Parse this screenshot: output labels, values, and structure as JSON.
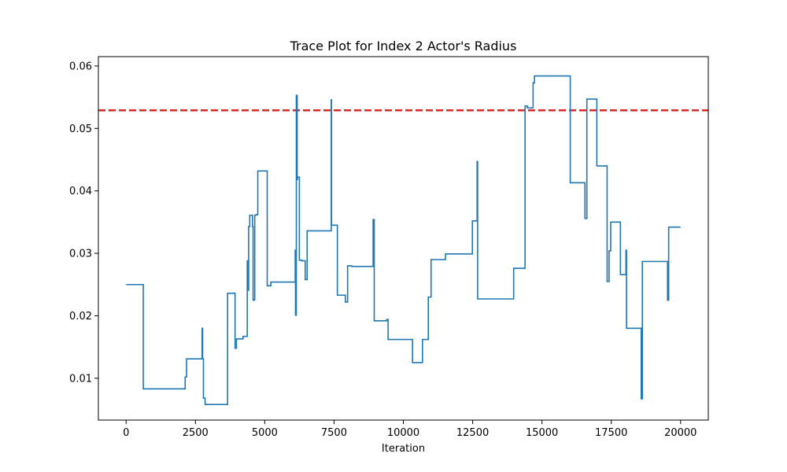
{
  "chart_data": {
    "type": "line",
    "title": "Trace Plot for Index 2 Actor's Radius",
    "xlabel": "Iteration",
    "ylabel": "",
    "xlim": [
      -1000,
      21000
    ],
    "ylim": [
      0.0033,
      0.0615
    ],
    "grid": false,
    "xticks": [
      0,
      2500,
      5000,
      7500,
      10000,
      12500,
      15000,
      17500,
      20000
    ],
    "xtick_labels": [
      "0",
      "2500",
      "5000",
      "7500",
      "10000",
      "12500",
      "15000",
      "17500",
      "20000"
    ],
    "yticks": [
      0.01,
      0.02,
      0.03,
      0.04,
      0.05,
      0.06
    ],
    "ytick_labels": [
      "0.01",
      "0.02",
      "0.03",
      "0.04",
      "0.05",
      "0.06"
    ],
    "reference_line": {
      "y": 0.0529,
      "color": "#d62728",
      "style": "dashed"
    },
    "series": [
      {
        "color": "#1f77b4",
        "step": true,
        "x": [
          0,
          620,
          2130,
          2180,
          2740,
          2760,
          2790,
          2850,
          3660,
          3930,
          3980,
          4220,
          4370,
          4380,
          4420,
          4460,
          4560,
          4580,
          4620,
          4640,
          4690,
          4750,
          4770,
          4920,
          5090,
          5220,
          5350,
          6100,
          6110,
          6140,
          6170,
          6180,
          6200,
          6250,
          6340,
          6460,
          6530,
          6600,
          6640,
          7400,
          7410,
          7430,
          7480,
          7620,
          7910,
          7990,
          8140,
          8200,
          8910,
          8950,
          8970,
          9400,
          9450,
          10330,
          10690,
          10900,
          11000,
          11100,
          11520,
          11620,
          12490,
          12660,
          12680,
          12710,
          13980,
          14390,
          14470,
          14680,
          14730,
          14820,
          15420,
          16020,
          16050,
          16280,
          16550,
          16620,
          16700,
          16980,
          17030,
          17350,
          17420,
          17480,
          17580,
          17830,
          18030,
          18050,
          18080,
          18100,
          18580,
          18620,
          18650,
          19530,
          19570,
          19660,
          20000
        ],
        "values": [
          0.025,
          0.0083,
          0.0102,
          0.0131,
          0.018,
          0.0131,
          0.0068,
          0.0058,
          0.0236,
          0.0148,
          0.0163,
          0.0167,
          0.0288,
          0.0241,
          0.0343,
          0.0361,
          0.0343,
          0.0225,
          0.0226,
          0.0361,
          0.0362,
          0.0432,
          0.0432,
          0.0432,
          0.0248,
          0.0254,
          0.0254,
          0.0305,
          0.0201,
          0.0553,
          0.0418,
          0.0422,
          0.0422,
          0.0289,
          0.0288,
          0.0258,
          0.0336,
          0.0336,
          0.0336,
          0.0546,
          0.0345,
          0.0345,
          0.0345,
          0.0233,
          0.0222,
          0.028,
          0.0279,
          0.0279,
          0.0354,
          0.0192,
          0.0192,
          0.0194,
          0.0162,
          0.0125,
          0.0162,
          0.023,
          0.029,
          0.029,
          0.0299,
          0.0299,
          0.0352,
          0.0447,
          0.0227,
          0.0227,
          0.0276,
          0.0536,
          0.0533,
          0.0573,
          0.0584,
          0.0584,
          0.0584,
          0.0413,
          0.0413,
          0.0413,
          0.0356,
          0.0547,
          0.0547,
          0.044,
          0.044,
          0.0255,
          0.0304,
          0.035,
          0.035,
          0.0266,
          0.0305,
          0.018,
          0.018,
          0.018,
          0.0067,
          0.0287,
          0.0287,
          0.0225,
          0.0342,
          0.0342,
          0.0342
        ]
      }
    ]
  }
}
